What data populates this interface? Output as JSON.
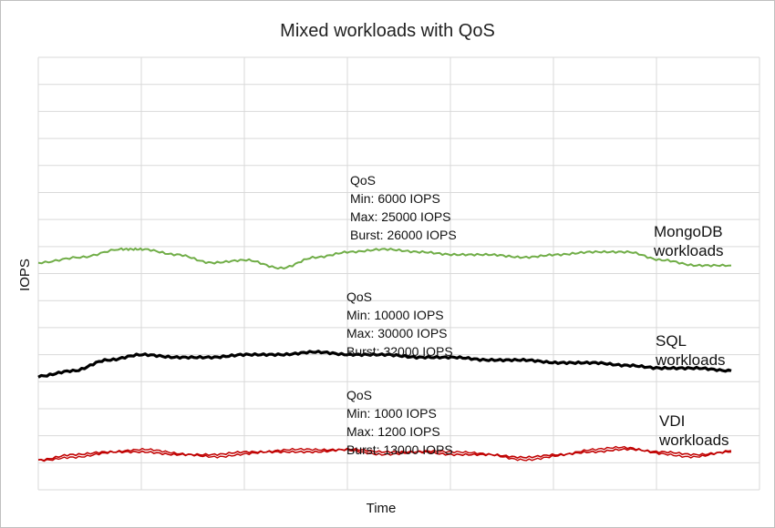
{
  "chart_data": {
    "type": "line",
    "title": "Mixed workloads with QoS",
    "xlabel": "Time",
    "ylabel": "IOPS",
    "ylim": [
      0,
      16
    ],
    "x_range": [
      0,
      100
    ],
    "grid": true,
    "series": [
      {
        "name": "MongoDB workloads",
        "label_lines": [
          "MongoDB",
          "workloads"
        ],
        "color": "#70ad47",
        "x": [
          0,
          6,
          12,
          15,
          20,
          25,
          30,
          35,
          40,
          45,
          50,
          55,
          60,
          65,
          70,
          75,
          80,
          85,
          90,
          95,
          100
        ],
        "values": [
          8.4,
          8.6,
          8.9,
          8.9,
          8.7,
          8.4,
          8.5,
          8.2,
          8.6,
          8.8,
          8.9,
          8.8,
          8.7,
          8.7,
          8.6,
          8.7,
          8.8,
          8.8,
          8.5,
          8.3,
          8.3
        ],
        "qos": [
          "QoS",
          "Min: 6000 IOPS",
          "Max: 25000 IOPS",
          "Burst: 26000 IOPS"
        ]
      },
      {
        "name": "SQL workloads",
        "label_lines": [
          "SQL",
          "workloads"
        ],
        "color": "#000000",
        "x": [
          0,
          5,
          10,
          15,
          20,
          25,
          30,
          35,
          40,
          45,
          50,
          55,
          60,
          65,
          70,
          75,
          80,
          85,
          90,
          95,
          100
        ],
        "values": [
          4.2,
          4.4,
          4.8,
          5.0,
          4.9,
          4.9,
          5.0,
          5.0,
          5.1,
          5.0,
          5.0,
          4.9,
          4.9,
          4.8,
          4.8,
          4.7,
          4.7,
          4.6,
          4.5,
          4.5,
          4.4
        ],
        "qos": [
          "QoS",
          "Min: 10000 IOPS",
          "Max: 30000 IOPS",
          "Burst: 32000 IOPS"
        ]
      },
      {
        "name": "VDI workloads",
        "label_lines": [
          "VDI",
          "workloads"
        ],
        "color": "#c00000",
        "x": [
          0,
          5,
          10,
          15,
          20,
          25,
          30,
          35,
          40,
          45,
          50,
          55,
          60,
          65,
          70,
          75,
          80,
          85,
          90,
          95,
          100
        ],
        "values": [
          1.1,
          1.3,
          1.4,
          1.4,
          1.3,
          1.3,
          1.4,
          1.4,
          1.4,
          1.5,
          1.4,
          1.4,
          1.3,
          1.3,
          1.2,
          1.3,
          1.4,
          1.5,
          1.4,
          1.3,
          1.4
        ],
        "qos": [
          "QoS",
          "Min: 1000 IOPS",
          "Max: 1200 IOPS",
          "Burst: 13000 IOPS"
        ]
      }
    ]
  }
}
